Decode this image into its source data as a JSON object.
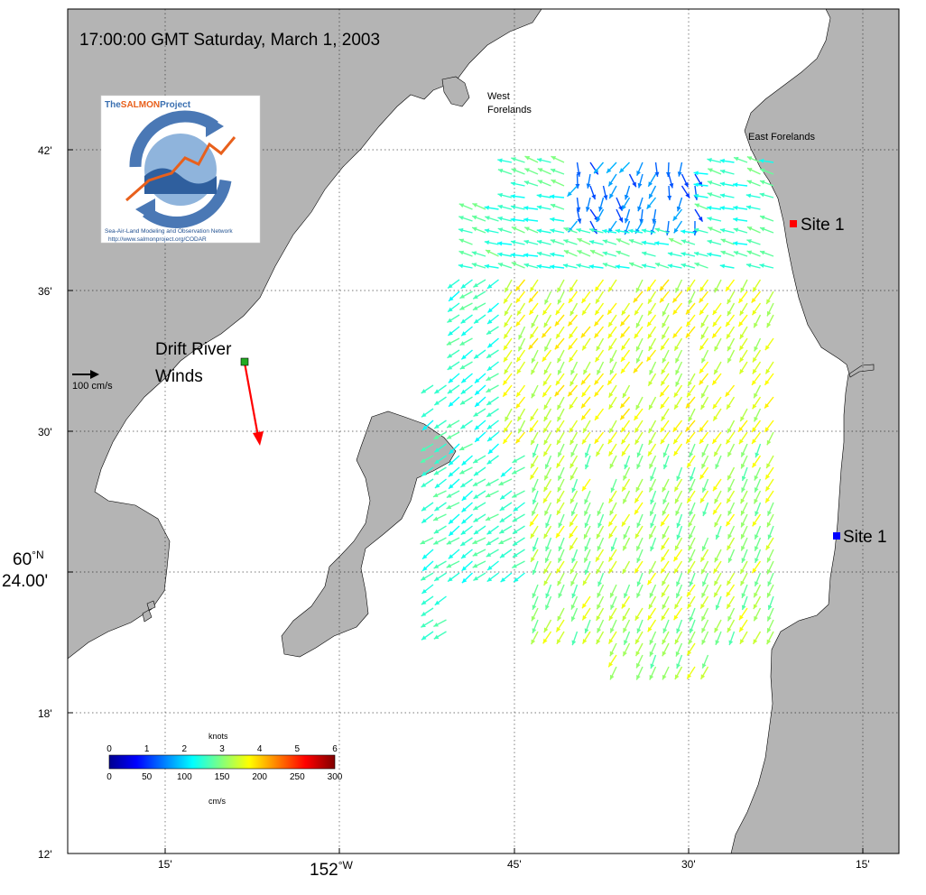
{
  "title": "17:00:00 GMT Saturday, March 1, 2003",
  "axes": {
    "lat_ticks": [
      "42'",
      "36'",
      "30'",
      "60 °N 24.00'",
      "18'",
      "12'"
    ],
    "lat_main_deg": "60",
    "lat_main_unit": "°N",
    "lat_main_min": "24.00'",
    "lon_ticks": [
      "15'",
      "45'",
      "30'",
      "15'"
    ],
    "lon_main_deg": "152",
    "lon_main_unit": "°W"
  },
  "places": {
    "west_forelands_1": "West",
    "west_forelands_2": "Forelands",
    "east_forelands": "East Forelands",
    "site_north": "Site 1",
    "site_south": "Site 1",
    "drift_1": "Drift River",
    "drift_2": "Winds"
  },
  "reference_arrow": {
    "label": "100 cm/s",
    "value_cm_s": 100
  },
  "logo": {
    "title_prefix": "The",
    "title_main": "SALMON",
    "title_suffix": "Project",
    "subtitle": "Sea-Air-Land Modeling and Observation Network",
    "url": "http://www.salmonproject.org/CODAR"
  },
  "colorbar": {
    "top_label": "knots",
    "bottom_label": "cm/s",
    "knots_ticks": [
      "0",
      "1",
      "2",
      "3",
      "4",
      "5",
      "6"
    ],
    "cms_ticks": [
      "0",
      "50",
      "100",
      "150",
      "200",
      "250",
      "300"
    ],
    "min_cm_s": 0,
    "max_cm_s": 300
  },
  "colors": {
    "land": "#b4b4b4",
    "site_north": "#ff0000",
    "site_south": "#0000ff",
    "drift_station": "#22aa22",
    "wind_arrow": "#ff0000"
  },
  "wind": {
    "station": "Drift River Winds",
    "direction": "toward SSE",
    "speed_cm_s": 100
  }
}
